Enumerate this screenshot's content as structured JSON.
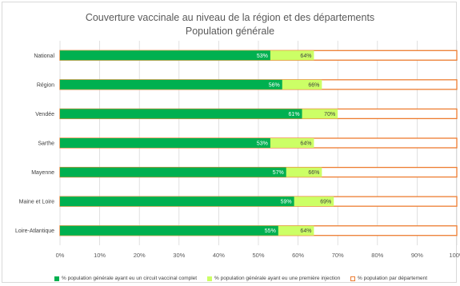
{
  "chart_data": {
    "type": "bar",
    "orientation": "horizontal",
    "title": "Couverture vaccinale au niveau de la région et des départements",
    "subtitle": "Population générale",
    "categories": [
      "National",
      "Région",
      "Vendée",
      "Sarthe",
      "Mayenne",
      "Maine et Loire",
      "Loire-Atlantique"
    ],
    "series": [
      {
        "name": "% population générale ayant eu un circuit vaccinal complet",
        "values": [
          53,
          56,
          61,
          53,
          57,
          59,
          55
        ],
        "labels": [
          "53%",
          "56%",
          "61%",
          "53%",
          "57%",
          "59%",
          "55%"
        ],
        "color": "#00b050"
      },
      {
        "name": "% population générale ayant eu une première injection",
        "values": [
          64,
          66,
          70,
          64,
          66,
          69,
          64
        ],
        "labels": [
          "64%",
          "66%",
          "70%",
          "64%",
          "66%",
          "69%",
          "64%"
        ],
        "color": "#ccff66"
      },
      {
        "name": "% population par département",
        "values": [
          100,
          100,
          100,
          100,
          100,
          100,
          100
        ],
        "color": "#ed7d31"
      }
    ],
    "xlim": [
      0,
      100
    ],
    "xticks": [
      "0%",
      "10%",
      "20%",
      "30%",
      "40%",
      "50%",
      "60%",
      "70%",
      "80%",
      "90%",
      "100%"
    ],
    "grid": true,
    "legend_position": "bottom"
  }
}
